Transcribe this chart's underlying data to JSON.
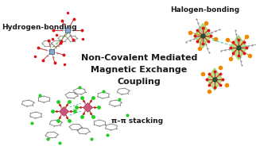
{
  "title_line1": "Non-Covalent Mediated",
  "title_line2": "Magnetic Exchange",
  "title_line3": "Coupling",
  "label_hb": "Hydrogen-bonding",
  "label_halogen": "Halogen-bonding",
  "label_pi": "π–π stacking",
  "bg_color": "#ffffff",
  "title_color": "#1a1a1a",
  "title_fontsize": 8.0,
  "label_fontsize": 6.5,
  "figsize": [
    3.22,
    1.89
  ],
  "dpi": 100,
  "atom_red": "#dd1111",
  "atom_gray": "#999999",
  "atom_darkgray": "#555555",
  "atom_blue_light": "#99bbcc",
  "atom_green_bright": "#22cc22",
  "atom_orange": "#ee8800",
  "atom_pink": "#cc5577",
  "atom_pink2": "#ee99bb",
  "bond_gray": "#888888",
  "bond_dark": "#444444",
  "highlight_green": "#88cc44",
  "highlight_blue": "#88aacc",
  "hbond_color": "#33bb33",
  "halogen_bond_color": "#44ccaa"
}
